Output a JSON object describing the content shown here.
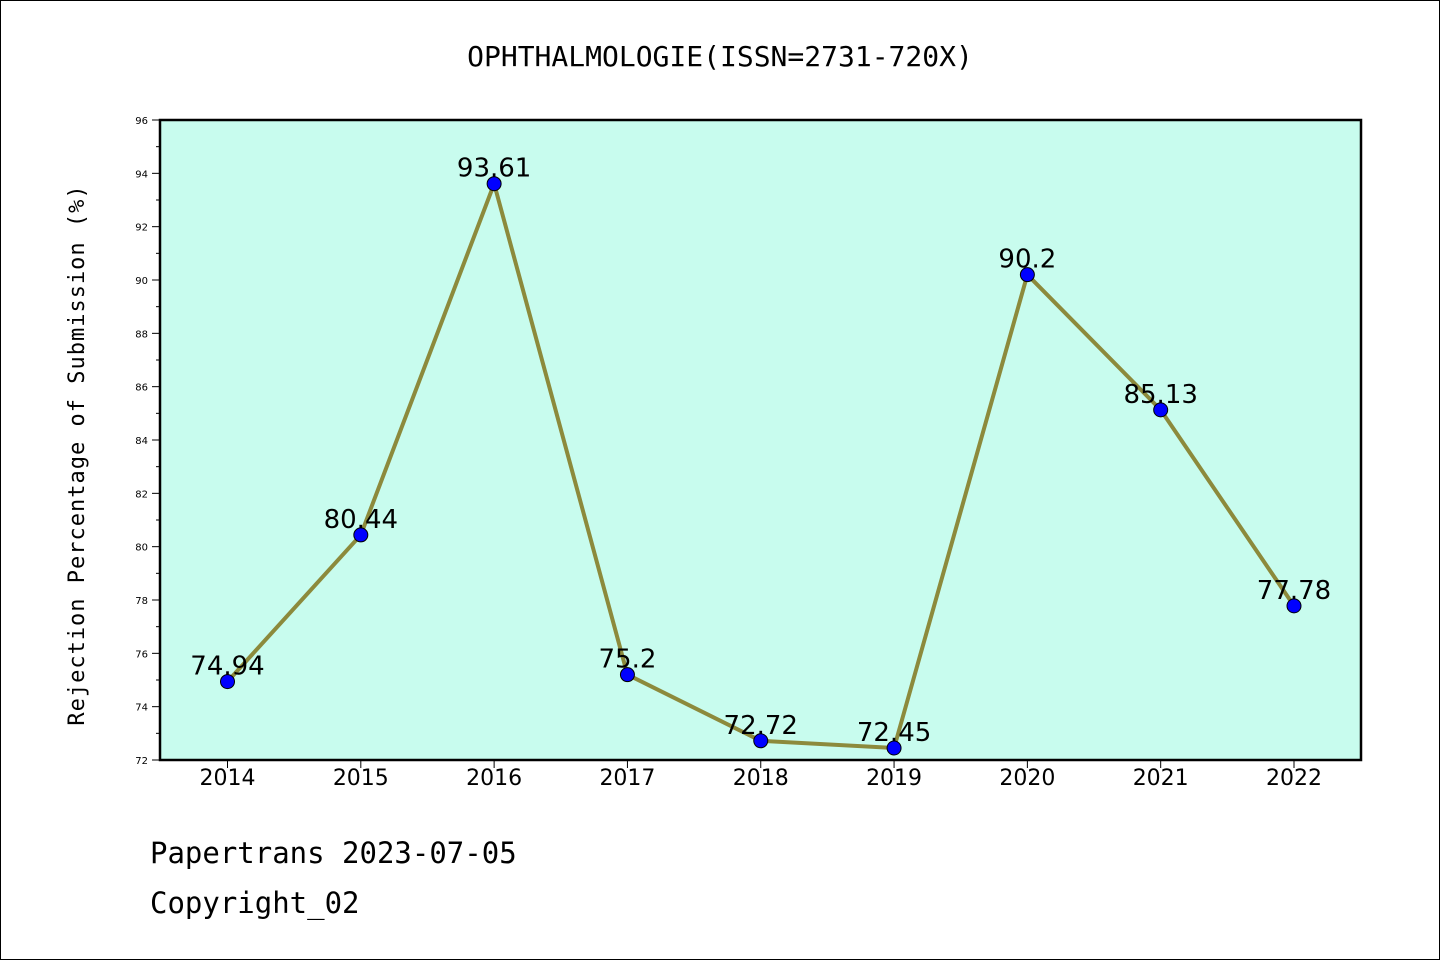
{
  "chart_data": {
    "type": "line",
    "title": "OPHTHALMOLOGIE(ISSN=2731-720X)",
    "xlabel": "",
    "ylabel": "Rejection Percentage of Submission (%)",
    "categories": [
      "2014",
      "2015",
      "2016",
      "2017",
      "2018",
      "2019",
      "2020",
      "2021",
      "2022"
    ],
    "series": [
      {
        "values": [
          74.94,
          80.44,
          93.61,
          75.2,
          72.72,
          72.45,
          90.2,
          85.13,
          77.78
        ],
        "data_labels": [
          "74.94",
          "80.44",
          "93.61",
          "75.2",
          "72.72",
          "72.45",
          "90.2",
          "85.13",
          "77.78"
        ]
      }
    ],
    "ylim": [
      72,
      96
    ],
    "yticks": [
      "72",
      "74",
      "76",
      "78",
      "80",
      "82",
      "84",
      "86",
      "88",
      "90",
      "92",
      "94",
      "96"
    ],
    "grid": false,
    "legend": "none",
    "colors": {
      "plot_background": "#c8fcee",
      "line": "#8c8a3c",
      "marker": "#0000ff"
    }
  },
  "footer": {
    "line1": "Papertrans 2023-07-05",
    "line2": "Copyright_02"
  }
}
